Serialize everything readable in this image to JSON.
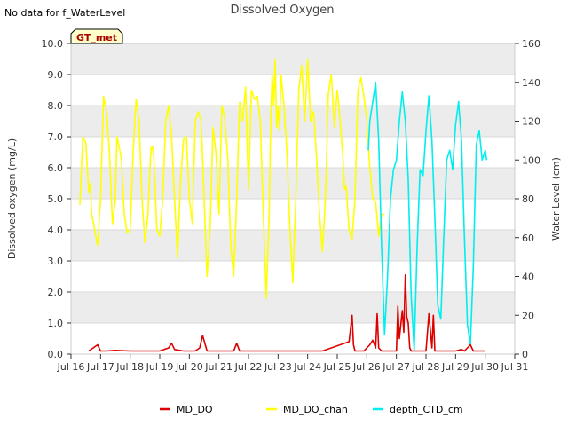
{
  "chart_data": {
    "type": "line",
    "title": "Dissolved Oxygen",
    "note": "No data for f_WaterLevel",
    "badge": "GT_met",
    "xlabel": "",
    "ylabel": "Dissolved oxygen (mg/L)",
    "y2label": "Water Level (cm)",
    "xlim": [
      16,
      31
    ],
    "ylim": [
      0,
      10
    ],
    "y2lim": [
      0,
      160
    ],
    "xticks": [
      16,
      17,
      18,
      19,
      20,
      21,
      22,
      23,
      24,
      25,
      26,
      27,
      28,
      29,
      30,
      31
    ],
    "xticklabels": [
      "Jul 16",
      "Jul 17",
      "Jul 18",
      "Jul 19",
      "Jul 20",
      "Jul 21",
      "Jul 22",
      "Jul 23",
      "Jul 24",
      "Jul 25",
      "Jul 26",
      "Jul 27",
      "Jul 28",
      "Jul 29",
      "Jul 30",
      "Jul 31"
    ],
    "yticks": [
      0,
      1,
      2,
      3,
      4,
      5,
      6,
      7,
      8,
      9,
      10
    ],
    "yticklabels": [
      "0.0",
      "1.0",
      "2.0",
      "3.0",
      "4.0",
      "5.0",
      "6.0",
      "7.0",
      "8.0",
      "9.0",
      "10.0"
    ],
    "y2ticks": [
      0,
      20,
      40,
      60,
      80,
      100,
      120,
      140,
      160
    ],
    "y2ticklabels": [
      "0",
      "20",
      "40",
      "60",
      "80",
      "100",
      "120",
      "140",
      "160"
    ],
    "colors": {
      "band": "#ececec",
      "frame": "#cccccc",
      "badge_bg": "#ffffcc",
      "badge_text": "#aa0000"
    },
    "legend_position": "bottom-center",
    "series": [
      {
        "name": "MD_DO",
        "color": "#dd0000",
        "axis": "left",
        "x": [
          16.6,
          16.9,
          17.0,
          17.2,
          17.5,
          18.0,
          18.5,
          19.0,
          19.3,
          19.4,
          19.5,
          19.8,
          20.2,
          20.35,
          20.45,
          20.6,
          20.8,
          21.0,
          21.5,
          21.6,
          21.7,
          21.8,
          22.5,
          23.5,
          24.5,
          25.4,
          25.5,
          25.55,
          25.6,
          25.7,
          25.9,
          26.1,
          26.2,
          26.3,
          26.35,
          26.4,
          26.5,
          26.6,
          26.7,
          26.8,
          26.9,
          27.0,
          27.05,
          27.1,
          27.2,
          27.25,
          27.3,
          27.35,
          27.4,
          27.45,
          27.5,
          27.55,
          27.6,
          27.8,
          28.0,
          28.1,
          28.2,
          28.25,
          28.3,
          28.35,
          28.4,
          28.6,
          28.8,
          29.0,
          29.2,
          29.3,
          29.5,
          29.6,
          29.7,
          30.0
        ],
        "y": [
          0.1,
          0.3,
          0.1,
          0.1,
          0.12,
          0.1,
          0.1,
          0.1,
          0.2,
          0.35,
          0.15,
          0.1,
          0.1,
          0.2,
          0.6,
          0.1,
          0.1,
          0.1,
          0.1,
          0.35,
          0.1,
          0.1,
          0.1,
          0.1,
          0.1,
          0.4,
          1.25,
          0.3,
          0.1,
          0.1,
          0.1,
          0.3,
          0.45,
          0.2,
          1.3,
          0.2,
          0.1,
          0.1,
          0.1,
          0.1,
          0.1,
          0.1,
          1.55,
          0.5,
          1.4,
          0.7,
          2.55,
          1.2,
          1.0,
          0.2,
          0.1,
          0.1,
          0.1,
          0.1,
          0.1,
          1.3,
          0.2,
          1.25,
          0.1,
          0.1,
          0.1,
          0.1,
          0.1,
          0.1,
          0.15,
          0.1,
          0.3,
          0.1,
          0.1,
          0.1
        ]
      },
      {
        "name": "MD_DO_chan",
        "color": "#ffff00",
        "axis": "left",
        "x": [
          16.3,
          16.4,
          16.5,
          16.6,
          16.65,
          16.7,
          16.8,
          16.9,
          17.0,
          17.1,
          17.2,
          17.3,
          17.4,
          17.5,
          17.55,
          17.6,
          17.7,
          17.8,
          17.9,
          18.0,
          18.1,
          18.2,
          18.3,
          18.4,
          18.5,
          18.6,
          18.7,
          18.75,
          18.8,
          18.9,
          19.0,
          19.1,
          19.2,
          19.3,
          19.4,
          19.5,
          19.6,
          19.7,
          19.8,
          19.9,
          20.0,
          20.1,
          20.2,
          20.3,
          20.4,
          20.5,
          20.6,
          20.7,
          20.8,
          20.9,
          21.0,
          21.1,
          21.2,
          21.3,
          21.4,
          21.5,
          21.6,
          21.7,
          21.8,
          21.9,
          22.0,
          22.1,
          22.2,
          22.3,
          22.4,
          22.5,
          22.6,
          22.7,
          22.75,
          22.8,
          22.85,
          22.9,
          22.95,
          23.0,
          23.05,
          23.1,
          23.2,
          23.3,
          23.4,
          23.5,
          23.6,
          23.7,
          23.8,
          23.9,
          24.0,
          24.1,
          24.2,
          24.3,
          24.4,
          24.5,
          24.6,
          24.7,
          24.8,
          24.9,
          25.0,
          25.1,
          25.2,
          25.25,
          25.3,
          25.4,
          25.5,
          25.6,
          25.7,
          25.8,
          25.9,
          26.0,
          26.1,
          26.2,
          26.3,
          26.4,
          26.5,
          26.6
        ],
        "y": [
          4.8,
          7.0,
          6.8,
          5.2,
          5.5,
          4.5,
          4.0,
          3.5,
          5.0,
          8.3,
          7.8,
          6.5,
          4.2,
          5.0,
          7.0,
          6.8,
          6.3,
          4.5,
          3.9,
          4.0,
          6.5,
          8.2,
          7.5,
          5.0,
          3.6,
          4.5,
          6.6,
          6.7,
          6.4,
          4.0,
          3.8,
          5.0,
          7.5,
          8.0,
          7.0,
          5.0,
          3.1,
          5.5,
          6.9,
          7.0,
          5.0,
          4.2,
          7.5,
          7.8,
          7.5,
          5.0,
          2.5,
          4.0,
          7.3,
          6.5,
          4.5,
          8.0,
          7.6,
          6.3,
          3.5,
          2.5,
          5.0,
          8.1,
          7.5,
          8.6,
          5.3,
          8.5,
          8.2,
          8.3,
          7.5,
          4.5,
          1.8,
          4.5,
          7.5,
          9.0,
          8.0,
          9.5,
          7.3,
          8.0,
          7.2,
          9.0,
          8.0,
          6.5,
          4.0,
          2.3,
          5.0,
          8.5,
          9.3,
          7.5,
          9.5,
          7.5,
          7.8,
          6.3,
          4.5,
          3.3,
          5.0,
          8.4,
          9.0,
          7.3,
          8.5,
          7.5,
          6.2,
          5.3,
          5.4,
          4.0,
          3.7,
          5.0,
          8.5,
          8.9,
          8.3,
          7.5,
          6.0,
          5.0,
          4.9,
          3.8,
          4.5,
          4.5
        ]
      },
      {
        "name": "depth_CTD_cm",
        "color": "#00eeee",
        "axis": "right",
        "x": [
          26.05,
          26.1,
          26.2,
          26.3,
          26.4,
          26.5,
          26.6,
          26.7,
          26.8,
          26.9,
          27.0,
          27.1,
          27.2,
          27.3,
          27.4,
          27.5,
          27.6,
          27.7,
          27.8,
          27.9,
          28.0,
          28.1,
          28.2,
          28.3,
          28.4,
          28.5,
          28.6,
          28.7,
          28.8,
          28.9,
          29.0,
          29.1,
          29.2,
          29.3,
          29.4,
          29.5,
          29.6,
          29.7,
          29.8,
          29.9,
          30.0,
          30.05
        ],
        "y": [
          105,
          120,
          130,
          140,
          110,
          55,
          10,
          40,
          80,
          95,
          100,
          120,
          135,
          120,
          90,
          30,
          2,
          55,
          95,
          92,
          115,
          133,
          110,
          70,
          25,
          18,
          60,
          100,
          105,
          95,
          118,
          130,
          110,
          60,
          15,
          5,
          45,
          108,
          115,
          100,
          105,
          100
        ]
      }
    ]
  }
}
